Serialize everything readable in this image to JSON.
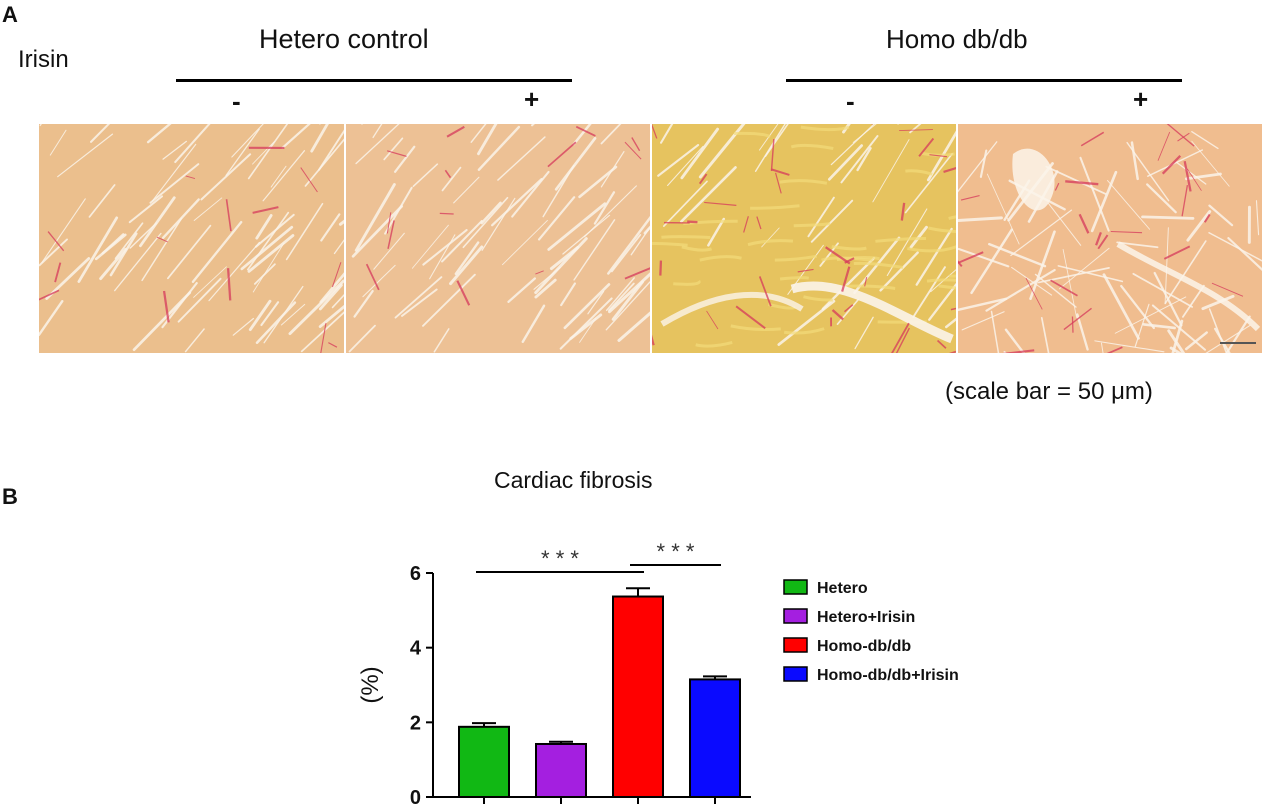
{
  "panel_a": {
    "label": "A",
    "row_label": "Irisin",
    "groups": [
      {
        "title": "Hetero control",
        "minus": "-",
        "plus": "+"
      },
      {
        "title": "Homo db/db",
        "minus": "-",
        "plus": "+"
      }
    ],
    "scale_bar_text": "(scale bar = 50 μm)",
    "tile_colors": [
      "#ebbf8d",
      "#edc195",
      "#e6c35f",
      "#f0bd8f"
    ],
    "stain_color": "#d63a5c"
  },
  "panel_b": {
    "label": "B"
  },
  "chart_data": {
    "type": "bar",
    "title": "Cardiac fibrosis",
    "ylabel": "(%)",
    "ylim": [
      0,
      6
    ],
    "yticks": [
      0,
      2,
      4,
      6
    ],
    "categories": [
      "Hetero",
      "Hetero+Irisin",
      "Homo-db/db",
      "Homo-db/db+Irisin"
    ],
    "values": [
      1.88,
      1.42,
      5.37,
      3.15
    ],
    "errors": [
      0.1,
      0.06,
      0.22,
      0.08
    ],
    "colors": [
      "#11b814",
      "#a41fe0",
      "#ff0000",
      "#0a0aff"
    ],
    "legend_position": "right",
    "significance": [
      {
        "from": 0,
        "to": 2,
        "label": "* * *"
      },
      {
        "from": 2,
        "to": 3,
        "label": "* * *"
      }
    ]
  }
}
